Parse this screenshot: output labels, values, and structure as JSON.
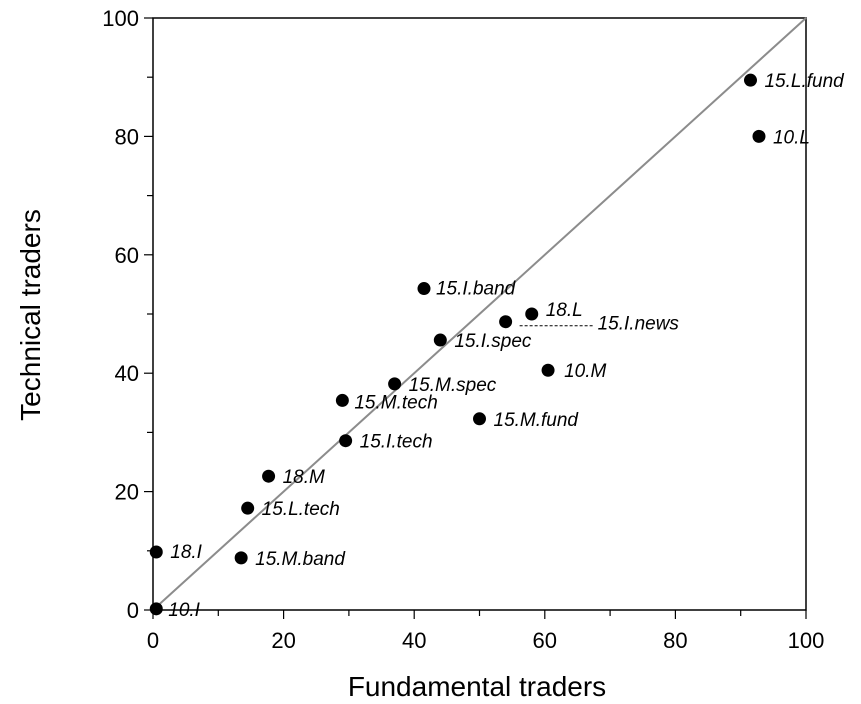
{
  "chart_data": {
    "type": "scatter",
    "xlabel": "Fundamental traders",
    "ylabel": "Technical traders",
    "xlim": [
      0,
      100
    ],
    "ylim": [
      0,
      100
    ],
    "xticks": [
      0,
      20,
      40,
      60,
      80,
      100
    ],
    "yticks": [
      0,
      20,
      40,
      60,
      80,
      100
    ],
    "reference_line": {
      "from": [
        0,
        0
      ],
      "to": [
        100,
        100
      ],
      "color": "#8c8c8c"
    },
    "grid": false,
    "point_color": "#000000",
    "points": [
      {
        "label": "15.L.fund",
        "x": 91.5,
        "y": 89.5
      },
      {
        "label": "10.L",
        "x": 92.8,
        "y": 80.0
      },
      {
        "label": "15.I.band",
        "x": 41.5,
        "y": 54.3
      },
      {
        "label": "18.L",
        "x": 58.0,
        "y": 50.0
      },
      {
        "label": "15.I.news",
        "x": 54.0,
        "y": 48.7
      },
      {
        "label": "15.I.spec",
        "x": 44.0,
        "y": 45.6
      },
      {
        "label": "10.M",
        "x": 60.5,
        "y": 40.5
      },
      {
        "label": "15.M.spec",
        "x": 37.0,
        "y": 38.2
      },
      {
        "label": "15.M.tech",
        "x": 29.0,
        "y": 35.4
      },
      {
        "label": "15.M.fund",
        "x": 50.0,
        "y": 32.3
      },
      {
        "label": "15.I.tech",
        "x": 29.5,
        "y": 28.6
      },
      {
        "label": "18.M",
        "x": 17.7,
        "y": 22.6
      },
      {
        "label": "15.L.tech",
        "x": 14.5,
        "y": 17.2
      },
      {
        "label": "18.I",
        "x": 0.5,
        "y": 9.8
      },
      {
        "label": "15.M.band",
        "x": 13.5,
        "y": 8.8
      },
      {
        "label": "10.I",
        "x": 0.5,
        "y": 0.2
      }
    ]
  }
}
